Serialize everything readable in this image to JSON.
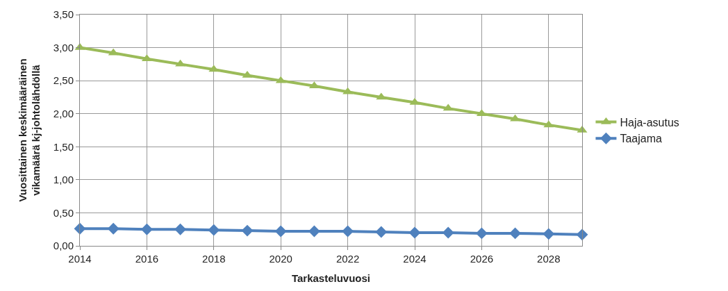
{
  "chart_data": {
    "type": "line",
    "xlabel": "Tarkasteluvuosi",
    "ylabel": "Vuosittainen keskimääräinen\nvikamäärä kj-johtolähdöllä",
    "x": [
      2014,
      2015,
      2016,
      2017,
      2018,
      2019,
      2020,
      2021,
      2022,
      2023,
      2024,
      2025,
      2026,
      2027,
      2028,
      2029
    ],
    "series": [
      {
        "name": "Haja-asutus",
        "color": "#9bbb59",
        "marker": "triangle",
        "values": [
          3.0,
          2.92,
          2.83,
          2.75,
          2.67,
          2.58,
          2.5,
          2.42,
          2.33,
          2.25,
          2.17,
          2.08,
          2.0,
          1.92,
          1.83,
          1.75
        ]
      },
      {
        "name": "Taajama",
        "color": "#4f81bd",
        "marker": "diamond",
        "values": [
          0.26,
          0.26,
          0.25,
          0.25,
          0.24,
          0.23,
          0.22,
          0.22,
          0.22,
          0.21,
          0.2,
          0.2,
          0.19,
          0.19,
          0.18,
          0.17
        ]
      }
    ],
    "xlim": [
      2014,
      2029
    ],
    "xticks": [
      2014,
      2016,
      2018,
      2020,
      2022,
      2024,
      2026,
      2028
    ],
    "ylim": [
      0,
      3.5
    ],
    "yticks": [
      {
        "value": 0,
        "label": "0,00"
      },
      {
        "value": 0.5,
        "label": "0,50"
      },
      {
        "value": 1,
        "label": "1,00"
      },
      {
        "value": 1.5,
        "label": "1,50"
      },
      {
        "value": 2,
        "label": "2,00"
      },
      {
        "value": 2.5,
        "label": "2,50"
      },
      {
        "value": 3,
        "label": "3,00"
      },
      {
        "value": 3.5,
        "label": "3,50"
      }
    ],
    "grid": true,
    "legend": "right",
    "line_style": "solid"
  }
}
